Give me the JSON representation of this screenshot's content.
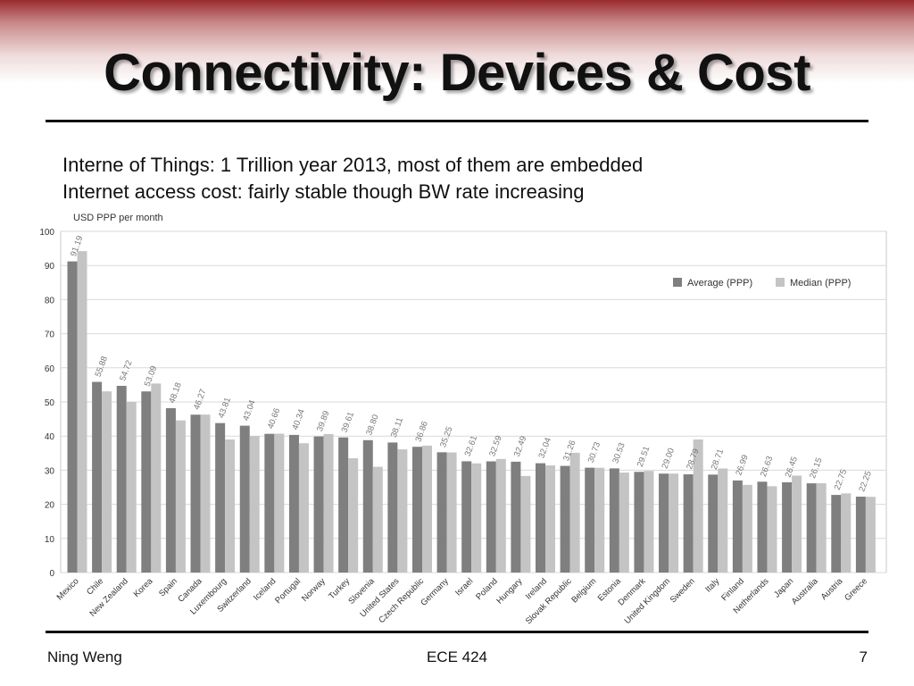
{
  "slide": {
    "title": "Connectivity: Devices & Cost",
    "bullets": [
      "Interne of Things: 1 Trillion year 2013, most of them are embedded",
      "Internet access cost: fairly stable though BW rate increasing"
    ],
    "footer": {
      "left": "Ning Weng",
      "center": "ECE 424",
      "right": "7"
    }
  },
  "colors": {
    "header_accent": "#9b2b2e",
    "average": "#7f7f7f",
    "median": "#c4c4c4"
  },
  "chart_data": {
    "type": "bar",
    "ylabel": "USD PPP per month",
    "ylim": [
      0,
      100
    ],
    "yticks": [
      0,
      10,
      20,
      30,
      40,
      50,
      60,
      70,
      80,
      90,
      100
    ],
    "grid": true,
    "legend_position": "top-right",
    "categories": [
      "Mexico",
      "Chile",
      "New Zealand",
      "Korea",
      "Spain",
      "Canada",
      "Luxembourg",
      "Switzerland",
      "Iceland",
      "Portugal",
      "Norway",
      "Turkey",
      "Slovenia",
      "United States",
      "Czech Republic",
      "Germany",
      "Israel",
      "Poland",
      "Hungary",
      "Ireland",
      "Slovak Republic",
      "Belgium",
      "Estonia",
      "Denmark",
      "United Kingdom",
      "Sweden",
      "Italy",
      "Finland",
      "Netherlands",
      "Japan",
      "Australia",
      "Austria",
      "Greece"
    ],
    "series": [
      {
        "name": "Average (PPP)",
        "values": [
          91.19,
          55.88,
          54.72,
          53.09,
          48.18,
          46.27,
          43.81,
          43.04,
          40.66,
          40.34,
          39.89,
          39.61,
          38.8,
          38.11,
          36.86,
          35.25,
          32.61,
          32.59,
          32.49,
          32.04,
          31.26,
          30.73,
          30.53,
          29.51,
          29.0,
          28.79,
          28.71,
          26.99,
          26.63,
          26.45,
          26.15,
          22.75,
          22.25
        ]
      },
      {
        "name": "Median (PPP)",
        "values": [
          94.2,
          53.1,
          50.0,
          55.4,
          44.6,
          46.3,
          39.0,
          40.0,
          40.7,
          37.9,
          40.6,
          33.5,
          31.0,
          36.1,
          37.2,
          35.2,
          32.0,
          33.3,
          28.3,
          31.4,
          35.1,
          30.7,
          29.3,
          29.8,
          29.0,
          39.0,
          30.5,
          25.7,
          25.3,
          28.4,
          26.2,
          23.2,
          22.2
        ]
      }
    ],
    "data_labels": [
      "91.19",
      "55.88",
      "54.72",
      "53.09",
      "48.18",
      "46.27",
      "43.81",
      "43.04",
      "40.66",
      "40.34",
      "39.89",
      "39.61",
      "38.80",
      "38.11",
      "36.86",
      "35.25",
      "32.61",
      "32.59",
      "32.49",
      "32.04",
      "31.26",
      "30.73",
      "30.53",
      "29.51",
      "29.00",
      "28.79",
      "28.71",
      "26.99",
      "26.63",
      "26.45",
      "26.15",
      "22.75",
      "22.25"
    ]
  }
}
